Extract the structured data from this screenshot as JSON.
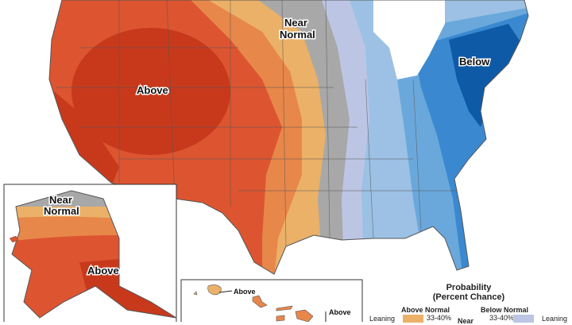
{
  "map": {
    "labels": {
      "conus_near": "Near",
      "conus_near2": "Normal",
      "conus_above": "Above",
      "conus_below": "Below",
      "alaska_near": "Near",
      "alaska_near2": "Normal",
      "alaska_above": "Above",
      "hawaii_above_1": "Above",
      "hawaii_above_2": "Above"
    },
    "colors": {
      "above_60_70": "#c8391c",
      "above_50_60": "#dc5530",
      "above_40_50": "#e8874a",
      "above_33_40": "#ebb168",
      "near": "#a8a8a8",
      "below_33_40": "#bcc6e4",
      "below_40_50": "#9cc1e5",
      "below_50_60": "#6aa8dc",
      "below_60_70": "#3a89d0",
      "below_70_80": "#0f5aa6"
    }
  },
  "legend": {
    "title": "Probability",
    "subtitle": "(Percent Chance)",
    "above_header": "Above Normal",
    "below_header": "Below Normal",
    "leaning_left": "Leaning",
    "leaning_right": "Leaning",
    "near": "Near",
    "above_range": "33-40%",
    "below_range": "33-40%"
  }
}
